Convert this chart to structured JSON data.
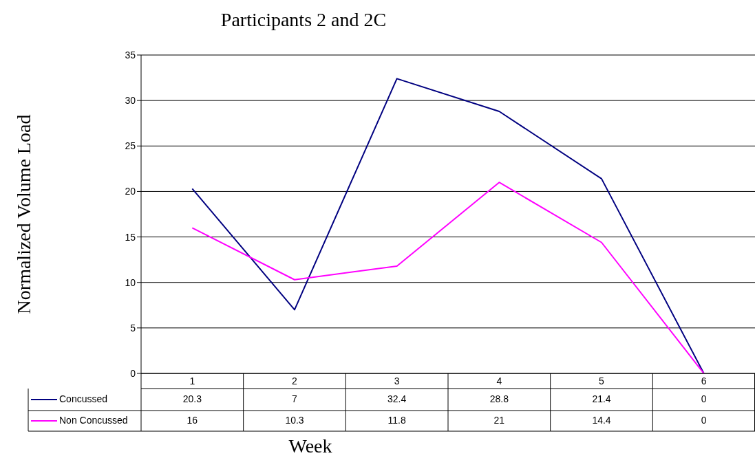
{
  "chart_data": {
    "type": "line",
    "title": "Participants 2 and 2C",
    "xlabel": "Week",
    "ylabel": "Normalized Volume Load",
    "categories": [
      "1",
      "2",
      "3",
      "4",
      "5",
      "6"
    ],
    "series": [
      {
        "name": "Concussed",
        "color": "#000080",
        "values": [
          20.3,
          7,
          32.4,
          28.8,
          21.4,
          0
        ]
      },
      {
        "name": "Non Concussed",
        "color": "#ff00ff",
        "values": [
          16,
          10.3,
          11.8,
          21,
          14.4,
          0
        ]
      }
    ],
    "ylim": [
      0,
      35
    ],
    "yticks": [
      0,
      5,
      10,
      15,
      20,
      25,
      30,
      35
    ],
    "grid": "y",
    "legend": "bottom",
    "data_labels": true
  }
}
